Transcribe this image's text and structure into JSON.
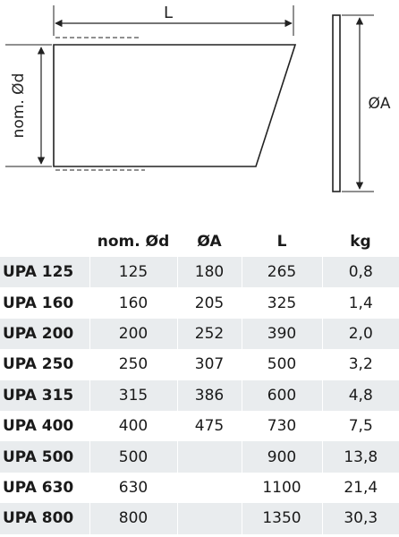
{
  "drawing": {
    "length_label": "L",
    "diameter_label": "nom. Ød",
    "outer_diameter_label": "ØA"
  },
  "table": {
    "headers": [
      "",
      "nom. Ød",
      "ØA",
      "L",
      "kg"
    ],
    "rows": [
      {
        "model": "UPA 125",
        "nom_d": "125",
        "a": "180",
        "l": "265",
        "kg": "0,8"
      },
      {
        "model": "UPA 160",
        "nom_d": "160",
        "a": "205",
        "l": "325",
        "kg": "1,4"
      },
      {
        "model": "UPA 200",
        "nom_d": "200",
        "a": "252",
        "l": "390",
        "kg": "2,0"
      },
      {
        "model": "UPA 250",
        "nom_d": "250",
        "a": "307",
        "l": "500",
        "kg": "3,2"
      },
      {
        "model": "UPA 315",
        "nom_d": "315",
        "a": "386",
        "l": "600",
        "kg": "4,8"
      },
      {
        "model": "UPA 400",
        "nom_d": "400",
        "a": "475",
        "l": "730",
        "kg": "7,5"
      },
      {
        "model": "UPA 500",
        "nom_d": "500",
        "a": "",
        "l": "900",
        "kg": "13,8"
      },
      {
        "model": "UPA 630",
        "nom_d": "630",
        "a": "",
        "l": "1100",
        "kg": "21,4"
      },
      {
        "model": "UPA 800",
        "nom_d": "800",
        "a": "",
        "l": "1350",
        "kg": "30,3"
      }
    ]
  }
}
